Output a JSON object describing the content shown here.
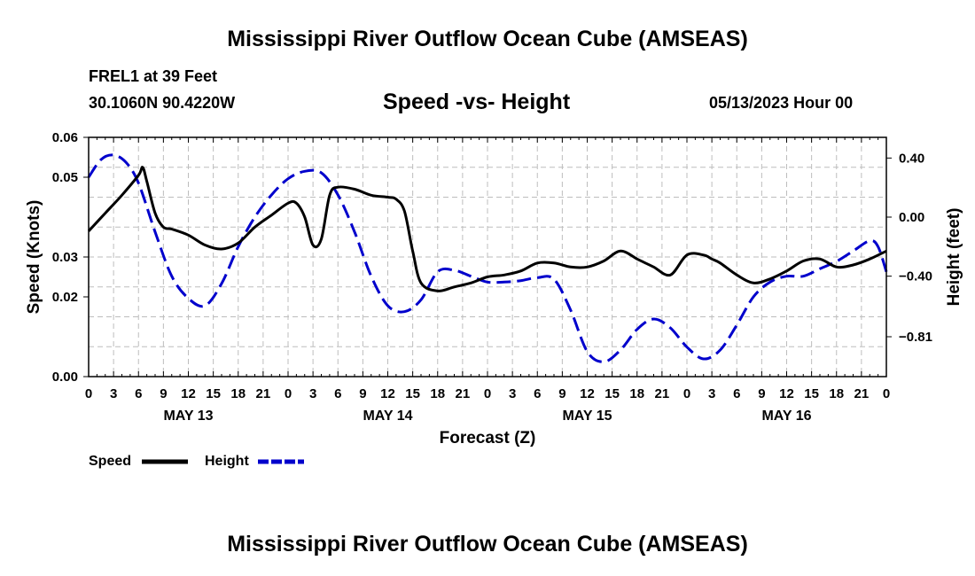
{
  "header": {
    "title": "Mississippi River Outflow Ocean Cube (AMSEAS)",
    "station": "FREL1 at 39 Feet",
    "coords": "30.1060N  90.4220W",
    "subtitle": "Speed -vs- Height",
    "datetime": "05/13/2023 Hour 00"
  },
  "footer": {
    "title": "Mississippi River Outflow Ocean Cube (AMSEAS)"
  },
  "chart_data": {
    "type": "line",
    "title": "Speed -vs- Height",
    "xlabel": "Forecast (Z)",
    "ylabel": "Speed (Knots)",
    "y2label": "Height (feet)",
    "x_range_hours": [
      0,
      96
    ],
    "x_tick_step_hours": 3,
    "x_tick_labels": [
      "0",
      "3",
      "6",
      "9",
      "12",
      "15",
      "18",
      "21",
      "0",
      "3",
      "6",
      "9",
      "12",
      "15",
      "18",
      "21",
      "0",
      "3",
      "6",
      "9",
      "12",
      "15",
      "18",
      "21",
      "0",
      "3",
      "6",
      "9",
      "12",
      "15",
      "18",
      "21",
      "0"
    ],
    "day_labels": [
      {
        "label": "MAY 13",
        "hour": 12
      },
      {
        "label": "MAY 14",
        "hour": 36
      },
      {
        "label": "MAY 15",
        "hour": 60
      },
      {
        "label": "MAY 16",
        "hour": 84
      }
    ],
    "ylim": [
      0,
      0.06
    ],
    "y_ticks": [
      0.0,
      0.02,
      0.03,
      0.05,
      0.06
    ],
    "y_tick_labels": [
      "0.00",
      "0.02",
      "0.03",
      "0.05",
      "0.06"
    ],
    "y2lim": [
      -1.08,
      0.54
    ],
    "y2_ticks": [
      0.4,
      0.0,
      -0.4,
      -0.81
    ],
    "y2_tick_labels": [
      "0.40",
      "0.00",
      "−0.40",
      "−0.81"
    ],
    "grid": true,
    "series": [
      {
        "name": "Speed",
        "axis": "left",
        "color": "#000000",
        "dash": "solid",
        "x": [
          0,
          2,
          4,
          6,
          6.5,
          7,
          8,
          9,
          10,
          12,
          14,
          16,
          18,
          20,
          22,
          24,
          25,
          26,
          27,
          28,
          29,
          30,
          32,
          34,
          36,
          37,
          38,
          39,
          40,
          42,
          44,
          46,
          48,
          50,
          52,
          54,
          56,
          58,
          60,
          62,
          64,
          66,
          67,
          68,
          70,
          72,
          74,
          75,
          76,
          78,
          80,
          82,
          84,
          86,
          88,
          90,
          92,
          94,
          96
        ],
        "y": [
          0.0365,
          0.041,
          0.0455,
          0.0505,
          0.0525,
          0.049,
          0.041,
          0.0375,
          0.037,
          0.0355,
          0.033,
          0.032,
          0.0335,
          0.0375,
          0.0405,
          0.0435,
          0.0435,
          0.04,
          0.033,
          0.0345,
          0.0455,
          0.0475,
          0.047,
          0.0455,
          0.045,
          0.0445,
          0.0415,
          0.0315,
          0.0235,
          0.0215,
          0.0225,
          0.0235,
          0.025,
          0.0255,
          0.0265,
          0.0285,
          0.0285,
          0.0275,
          0.0275,
          0.029,
          0.0315,
          0.0295,
          0.0285,
          0.0275,
          0.0255,
          0.0305,
          0.0305,
          0.0295,
          0.0285,
          0.0255,
          0.0235,
          0.0245,
          0.0265,
          0.029,
          0.0295,
          0.0275,
          0.028,
          0.0295,
          0.0315
        ]
      },
      {
        "name": "Height",
        "axis": "right",
        "color": "#0000cc",
        "dash": "dashed",
        "x": [
          0,
          1.5,
          3,
          4.5,
          6,
          8,
          10,
          12,
          14,
          16,
          18,
          20,
          22,
          24,
          26,
          28,
          30,
          32,
          34,
          36,
          38,
          40,
          42,
          44,
          46,
          48,
          50,
          52,
          54,
          56,
          58,
          60,
          62,
          64,
          66,
          68,
          70,
          72,
          74,
          76,
          78,
          80,
          82,
          84,
          86,
          88,
          90,
          92,
          94,
          95,
          96
        ],
        "y": [
          0.27,
          0.39,
          0.42,
          0.37,
          0.23,
          -0.1,
          -0.4,
          -0.55,
          -0.6,
          -0.45,
          -0.2,
          0.0,
          0.15,
          0.26,
          0.31,
          0.3,
          0.15,
          -0.1,
          -0.4,
          -0.6,
          -0.64,
          -0.56,
          -0.37,
          -0.36,
          -0.4,
          -0.44,
          -0.44,
          -0.43,
          -0.41,
          -0.42,
          -0.63,
          -0.91,
          -0.98,
          -0.9,
          -0.76,
          -0.69,
          -0.75,
          -0.88,
          -0.96,
          -0.9,
          -0.73,
          -0.54,
          -0.44,
          -0.4,
          -0.4,
          -0.35,
          -0.3,
          -0.23,
          -0.16,
          -0.2,
          -0.37
        ]
      }
    ],
    "legend": [
      {
        "label": "Speed",
        "color": "#000000",
        "dash": "solid"
      },
      {
        "label": "Height",
        "color": "#0000cc",
        "dash": "dashed"
      }
    ],
    "legend_position": "bottom-left"
  }
}
